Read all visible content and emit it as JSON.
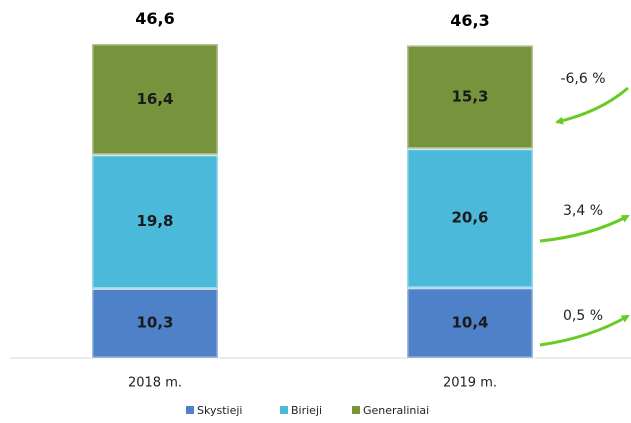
{
  "chart_data": {
    "type": "stacked_bar",
    "categories": [
      "2018 m.",
      "2019 m."
    ],
    "series": [
      {
        "name": "Skystieji",
        "color": "#4f81c9",
        "values": [
          10.3,
          10.4
        ],
        "value_labels": [
          "10,3",
          "10,4"
        ]
      },
      {
        "name": "Birieji",
        "color": "#4bb9da",
        "values": [
          19.8,
          20.6
        ],
        "value_labels": [
          "19,8",
          "20,6"
        ]
      },
      {
        "name": "Generaliniai",
        "color": "#77933c",
        "values": [
          16.4,
          15.3
        ],
        "value_labels": [
          "16,4",
          "15,3"
        ]
      }
    ],
    "totals": [
      46.6,
      46.3
    ],
    "total_labels": [
      "46,6",
      "46,3"
    ],
    "annotations": [
      "-6,6 %",
      "3,4 %",
      "0,5 %"
    ]
  }
}
